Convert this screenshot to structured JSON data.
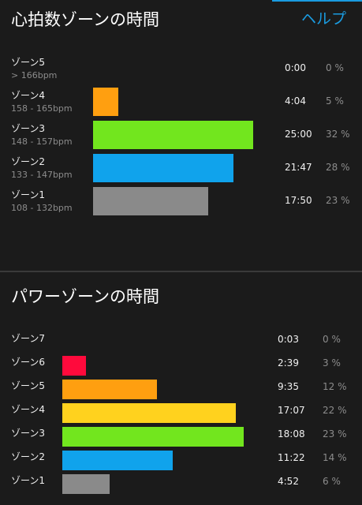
{
  "header": {
    "title": "心拍数ゾーンの時間",
    "help": "ヘルプ"
  },
  "heart_rate": {
    "zones": [
      {
        "name": "ゾーン5",
        "range": "> 166bpm",
        "time": "0:00",
        "percent": 0,
        "percent_label": "0 %"
      },
      {
        "name": "ゾーン4",
        "range": "158 - 165bpm",
        "time": "4:04",
        "percent": 5,
        "percent_label": "5 %",
        "color": "#ff9f10"
      },
      {
        "name": "ゾーン3",
        "range": "148 - 157bpm",
        "time": "25:00",
        "percent": 32,
        "percent_label": "32 %",
        "color": "#72e61e"
      },
      {
        "name": "ゾーン2",
        "range": "133 - 147bpm",
        "time": "21:47",
        "percent": 28,
        "percent_label": "28 %",
        "color": "#10a3ec"
      },
      {
        "name": "ゾーン1",
        "range": "108 - 132bpm",
        "time": "17:50",
        "percent": 23,
        "percent_label": "23 %",
        "color": "#8a8a8a"
      }
    ]
  },
  "power": {
    "title": "パワーゾーンの時間",
    "zones": [
      {
        "name": "ゾーン7",
        "time": "0:03",
        "percent": 0,
        "percent_label": "0 %"
      },
      {
        "name": "ゾーン6",
        "time": "2:39",
        "percent": 3,
        "percent_label": "3 %",
        "color": "#ff0a3c"
      },
      {
        "name": "ゾーン5",
        "time": "9:35",
        "percent": 12,
        "percent_label": "12 %",
        "color": "#ff9f10"
      },
      {
        "name": "ゾーン4",
        "time": "17:07",
        "percent": 22,
        "percent_label": "22 %",
        "color": "#ffd21e"
      },
      {
        "name": "ゾーン3",
        "time": "18:08",
        "percent": 23,
        "percent_label": "23 %",
        "color": "#72e61e"
      },
      {
        "name": "ゾーン2",
        "time": "11:22",
        "percent": 14,
        "percent_label": "14 %",
        "color": "#10a3ec"
      },
      {
        "name": "ゾーン1",
        "time": "4:52",
        "percent": 6,
        "percent_label": "6 %",
        "color": "#8a8a8a"
      }
    ]
  }
}
